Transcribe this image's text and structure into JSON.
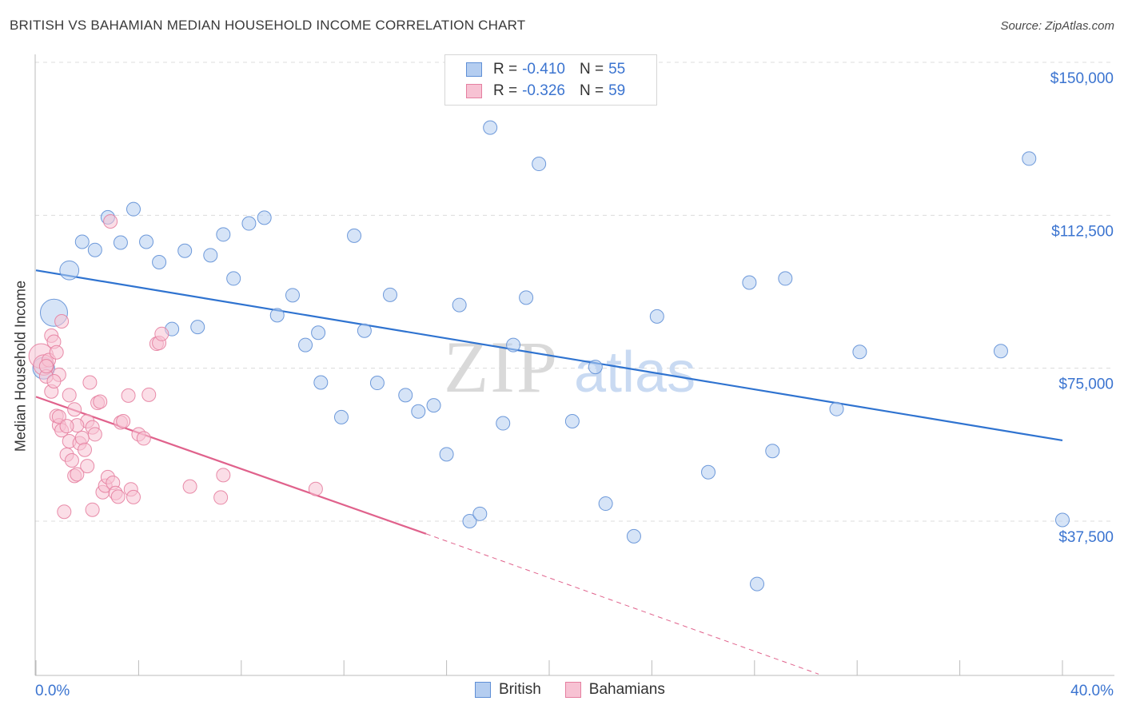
{
  "header": {
    "title": "BRITISH VS BAHAMIAN MEDIAN HOUSEHOLD INCOME CORRELATION CHART",
    "source": "Source: ZipAtlas.com"
  },
  "legend": {
    "rows": [
      {
        "r_label": "R =",
        "r_value": "-0.410",
        "n_label": "N =",
        "n_value": "55"
      },
      {
        "r_label": "R =",
        "r_value": "-0.326",
        "n_label": "N =",
        "n_value": "59"
      }
    ],
    "items": [
      {
        "label": "British"
      },
      {
        "label": "Bahamians"
      }
    ]
  },
  "colors": {
    "blue_fill": "#b4cdf0",
    "blue_stroke": "#5f8fd6",
    "blue_line": "#2f73d0",
    "pink_fill": "#f7c2d3",
    "pink_stroke": "#e57fa0",
    "pink_line": "#e0628c",
    "tick_label": "#3b74d0",
    "grid": "#dcdcdc"
  },
  "chart_data": {
    "type": "scatter",
    "title": "BRITISH VS BAHAMIAN MEDIAN HOUSEHOLD INCOME CORRELATION CHART",
    "xlabel": "",
    "ylabel": "Median Household Income",
    "xlim": [
      0,
      40
    ],
    "ylim": [
      0,
      155000
    ],
    "x_tick_labels": [
      "0.0%",
      "40.0%"
    ],
    "y_ticks": [
      {
        "value": 37500,
        "label": "$37,500"
      },
      {
        "value": 75000,
        "label": "$75,000"
      },
      {
        "value": 112500,
        "label": "$112,500"
      },
      {
        "value": 150000,
        "label": "$150,000"
      }
    ],
    "grid": true,
    "legend_position": "top-center",
    "watermark": "ZIPatlas",
    "series": [
      {
        "name": "British",
        "color": "#b4cdf0",
        "points": [
          [
            0.7,
            88600,
            2
          ],
          [
            1.3,
            99000,
            1.4
          ],
          [
            1.8,
            106000,
            1
          ],
          [
            2.3,
            104000,
            1
          ],
          [
            2.8,
            112000,
            1
          ],
          [
            3.3,
            105800,
            1
          ],
          [
            3.8,
            114000,
            1
          ],
          [
            4.3,
            106000,
            1
          ],
          [
            4.8,
            101000,
            1
          ],
          [
            5.3,
            84600,
            1
          ],
          [
            5.8,
            103800,
            1
          ],
          [
            6.3,
            85100,
            1
          ],
          [
            6.8,
            102700,
            1
          ],
          [
            7.3,
            107800,
            1
          ],
          [
            7.7,
            97000,
            1
          ],
          [
            8.3,
            110500,
            1
          ],
          [
            8.9,
            111900,
            1
          ],
          [
            9.4,
            88000,
            1
          ],
          [
            10.0,
            92900,
            1
          ],
          [
            10.5,
            80700,
            1
          ],
          [
            11.0,
            83700,
            1
          ],
          [
            11.1,
            71500,
            1
          ],
          [
            11.9,
            63000,
            1
          ],
          [
            12.4,
            107500,
            1
          ],
          [
            12.8,
            84200,
            1
          ],
          [
            13.3,
            71400,
            1
          ],
          [
            13.8,
            93000,
            1
          ],
          [
            14.4,
            68400,
            1
          ],
          [
            14.9,
            64400,
            1
          ],
          [
            15.5,
            65900,
            1
          ],
          [
            16.0,
            53900,
            1
          ],
          [
            16.5,
            90500,
            1
          ],
          [
            16.9,
            37500,
            1
          ],
          [
            17.3,
            39300,
            1
          ],
          [
            17.7,
            134000,
            1
          ],
          [
            18.2,
            61500,
            1
          ],
          [
            18.6,
            80700,
            1
          ],
          [
            19.1,
            92300,
            1
          ],
          [
            19.6,
            125100,
            1
          ],
          [
            20.9,
            62000,
            1
          ],
          [
            21.8,
            75300,
            1
          ],
          [
            22.2,
            41800,
            1
          ],
          [
            23.3,
            33800,
            1
          ],
          [
            24.2,
            87700,
            1
          ],
          [
            26.2,
            49500,
            1
          ],
          [
            27.8,
            96000,
            1
          ],
          [
            28.1,
            22100,
            1
          ],
          [
            28.7,
            54700,
            1
          ],
          [
            29.2,
            97000,
            1
          ],
          [
            31.2,
            65000,
            1
          ],
          [
            32.1,
            79000,
            1
          ],
          [
            37.6,
            79200,
            1
          ],
          [
            38.7,
            126400,
            1
          ],
          [
            40.0,
            37800,
            1
          ],
          [
            0.3,
            75000,
            1.6
          ]
        ]
      },
      {
        "name": "Bahamians",
        "color": "#f7c2d3",
        "points": [
          [
            0.2,
            78000,
            1.8
          ],
          [
            0.3,
            75800,
            1.5
          ],
          [
            0.4,
            73000,
            1
          ],
          [
            0.5,
            77000,
            1
          ],
          [
            0.6,
            83000,
            1
          ],
          [
            0.7,
            81500,
            1
          ],
          [
            0.8,
            78900,
            1
          ],
          [
            0.9,
            73400,
            1
          ],
          [
            1.0,
            86500,
            1
          ],
          [
            0.6,
            69300,
            1
          ],
          [
            0.8,
            63300,
            1
          ],
          [
            0.9,
            61000,
            1
          ],
          [
            1.0,
            59800,
            1
          ],
          [
            1.2,
            53800,
            1
          ],
          [
            1.3,
            57100,
            1
          ],
          [
            1.4,
            52400,
            1
          ],
          [
            1.5,
            48600,
            1
          ],
          [
            1.6,
            49000,
            1
          ],
          [
            1.7,
            56600,
            1
          ],
          [
            1.8,
            57900,
            1
          ],
          [
            1.9,
            55000,
            1
          ],
          [
            2.0,
            62000,
            1
          ],
          [
            2.1,
            71500,
            1
          ],
          [
            2.2,
            60500,
            1
          ],
          [
            2.3,
            58800,
            1
          ],
          [
            2.4,
            66500,
            1
          ],
          [
            2.5,
            66800,
            1
          ],
          [
            2.6,
            44600,
            1
          ],
          [
            2.7,
            46200,
            1
          ],
          [
            2.8,
            48300,
            1
          ],
          [
            3.0,
            46900,
            1
          ],
          [
            3.1,
            44400,
            1
          ],
          [
            3.2,
            43500,
            1
          ],
          [
            3.3,
            61700,
            1
          ],
          [
            3.4,
            62000,
            1
          ],
          [
            3.6,
            68300,
            1
          ],
          [
            3.7,
            45300,
            1
          ],
          [
            3.8,
            43400,
            1
          ],
          [
            4.0,
            58800,
            1
          ],
          [
            4.2,
            57800,
            1
          ],
          [
            4.4,
            68500,
            1
          ],
          [
            4.7,
            81000,
            1
          ],
          [
            4.8,
            81200,
            1
          ],
          [
            4.9,
            83400,
            1
          ],
          [
            6.0,
            46000,
            1
          ],
          [
            7.2,
            43300,
            1
          ],
          [
            7.3,
            48800,
            1
          ],
          [
            10.9,
            45400,
            1
          ],
          [
            2.9,
            111000,
            1
          ],
          [
            1.3,
            68400,
            1
          ],
          [
            1.1,
            39800,
            1
          ],
          [
            0.7,
            71800,
            1
          ],
          [
            0.9,
            63100,
            1
          ],
          [
            1.6,
            61000,
            1
          ],
          [
            2.2,
            40300,
            1
          ],
          [
            1.5,
            64900,
            1
          ],
          [
            2.0,
            51000,
            1
          ],
          [
            0.4,
            75500,
            1
          ],
          [
            1.2,
            60800,
            1
          ]
        ]
      }
    ],
    "trendlines": [
      {
        "series": "British",
        "x1": 0,
        "y1": 99000,
        "x2": 40,
        "y2": 57300
      },
      {
        "series": "Bahamians",
        "x1": 0,
        "y1": 68000,
        "x2": 15.2,
        "y2": 34400,
        "dashed_to_x": 30.5,
        "dashed_to_y": 0
      }
    ]
  }
}
